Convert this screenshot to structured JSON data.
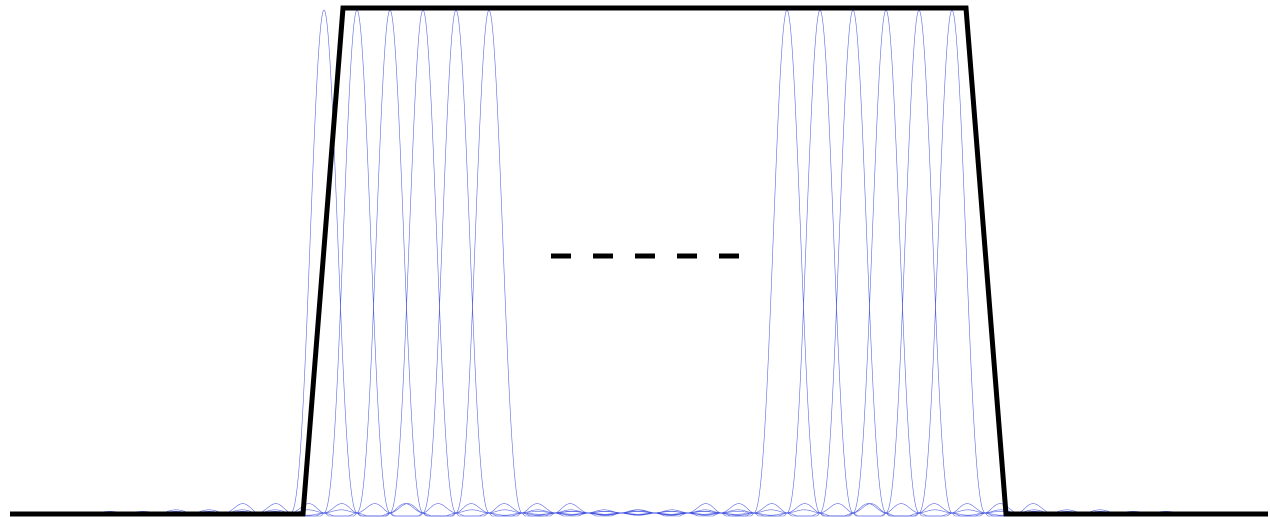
{
  "diagram": {
    "kind": "sinc-subcarrier-spectrum",
    "envelope_color": "#000000",
    "subcarrier_color": "#3344dd",
    "background_color": "#ffffff",
    "left_group_count": 6,
    "right_group_count": 6,
    "gap_dash_count": 5
  }
}
